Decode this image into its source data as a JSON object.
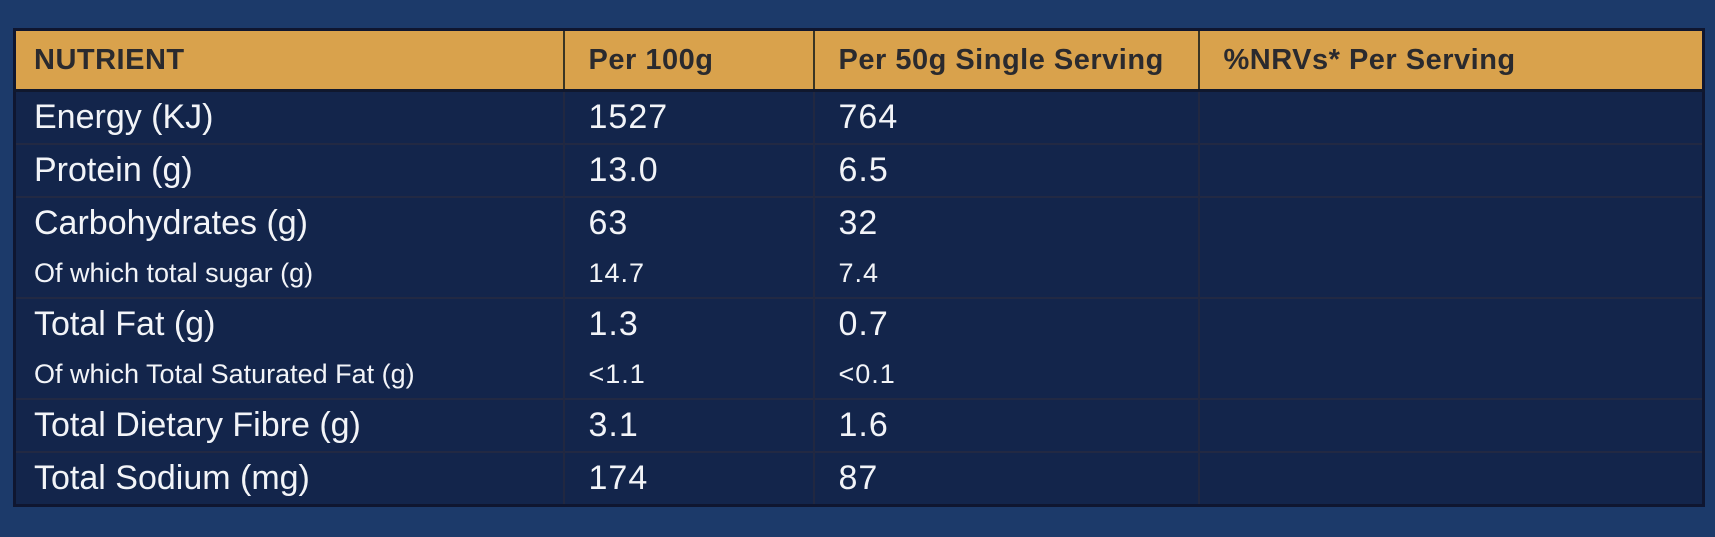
{
  "page": {
    "background_color": "#1C3A6A",
    "table_background_color": "#13254B",
    "header_background_color": "#D9A24C",
    "header_text_color": "#2A2A2E",
    "body_text_color": "#F2F4F8",
    "grid_line_color": "#222943"
  },
  "table": {
    "columns": [
      "NUTRIENT",
      "Per 100g",
      "Per 50g Single Serving",
      "%NRVs* Per Serving"
    ],
    "rows": [
      {
        "nutrient": "Energy (KJ)",
        "per_100g": "1527",
        "per_50g": "764",
        "nrv_per_serving": ""
      },
      {
        "nutrient": "Protein (g)",
        "per_100g": "13.0",
        "per_50g": "6.5",
        "nrv_per_serving": ""
      },
      {
        "nutrient": "Carbohydrates (g)",
        "per_100g": "63",
        "per_50g": "32",
        "nrv_per_serving": ""
      },
      {
        "nutrient": "Of which total sugar (g)",
        "per_100g": "14.7",
        "per_50g": "7.4",
        "nrv_per_serving": ""
      },
      {
        "nutrient": "Total Fat (g)",
        "per_100g": "1.3",
        "per_50g": "0.7",
        "nrv_per_serving": ""
      },
      {
        "nutrient": "Of which Total Saturated Fat (g)",
        "per_100g": "<1.1",
        "per_50g": "<0.1",
        "nrv_per_serving": ""
      },
      {
        "nutrient": "Total Dietary Fibre (g)",
        "per_100g": "3.1",
        "per_50g": "1.6",
        "nrv_per_serving": ""
      },
      {
        "nutrient": "Total Sodium (mg)",
        "per_100g": "174",
        "per_50g": "87",
        "nrv_per_serving": ""
      }
    ]
  }
}
